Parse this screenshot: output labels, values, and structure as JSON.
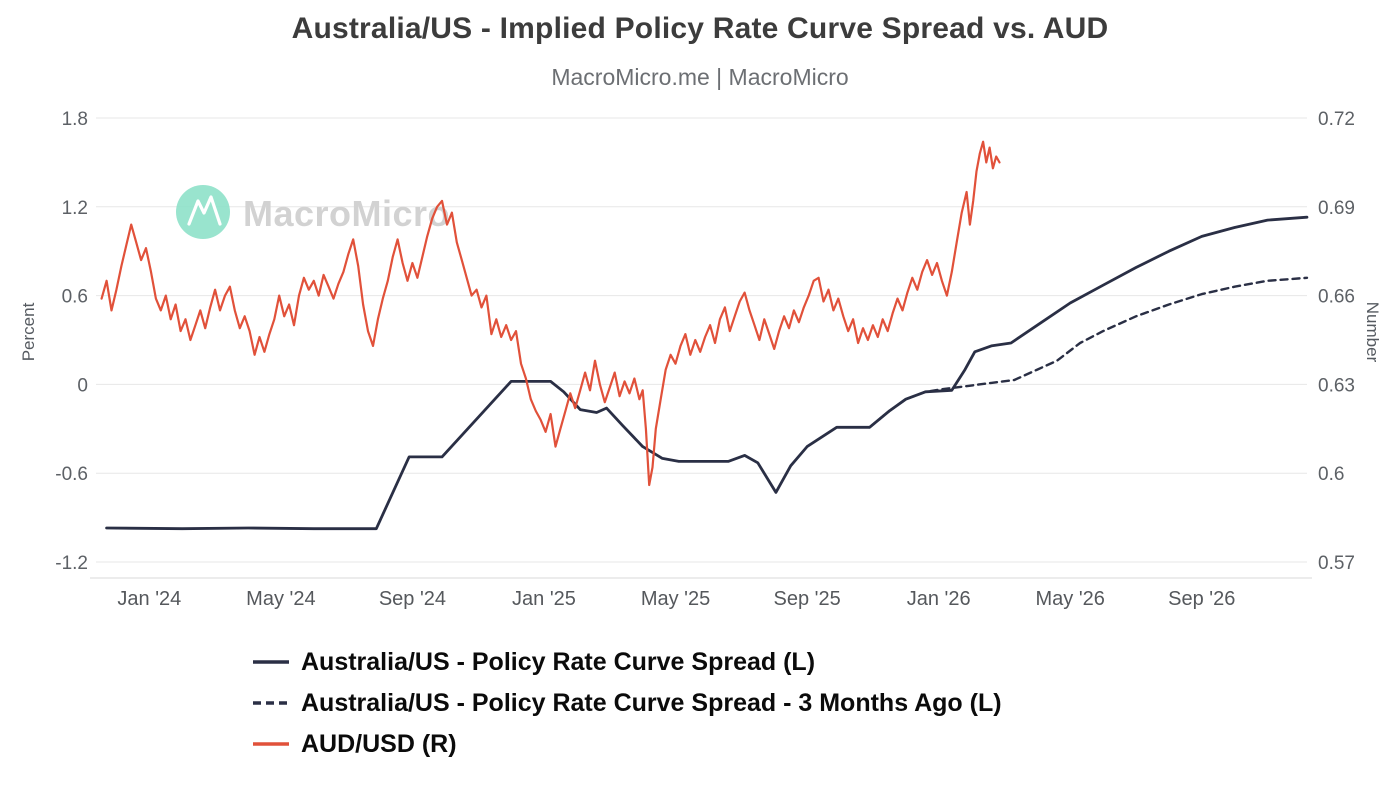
{
  "watermark": {
    "text": "MacroMicro",
    "logo_color": "#87dfc6",
    "text_color": "#d2d2d2"
  },
  "colors": {
    "grid": "#e7e7e7",
    "axis_line": "#d9d9d9",
    "tick_text": "#5d6166",
    "title": "#3c3c3c",
    "subtitle": "#6c6f73"
  },
  "chart_data": {
    "type": "line",
    "title": "Australia/US - Implied Policy Rate Curve Spread vs. AUD",
    "subtitle": "MacroMicro.me | MacroMicro",
    "grid": true,
    "legend_position": "bottom-left",
    "x_unit": "months since Jan 2024",
    "x_range": [
      -1.5,
      35.2
    ],
    "x_ticks": [
      {
        "m": 0,
        "label": "Jan '24"
      },
      {
        "m": 4,
        "label": "May '24"
      },
      {
        "m": 8,
        "label": "Sep '24"
      },
      {
        "m": 12,
        "label": "Jan '25"
      },
      {
        "m": 16,
        "label": "May '25"
      },
      {
        "m": 20,
        "label": "Sep '25"
      },
      {
        "m": 24,
        "label": "Jan '26"
      },
      {
        "m": 28,
        "label": "May '26"
      },
      {
        "m": 32,
        "label": "Sep '26"
      }
    ],
    "left_axis": {
      "title": "Percent",
      "range": [
        -1.2,
        1.8
      ],
      "ticks": [
        1.8,
        1.2,
        0.6,
        0,
        -0.6,
        -1.2
      ]
    },
    "right_axis": {
      "title": "Number",
      "range": [
        0.57,
        0.72
      ],
      "ticks": [
        0.72,
        0.69,
        0.66,
        0.63,
        0.6,
        0.57
      ]
    },
    "series": [
      {
        "name": "Australia/US - Policy Rate Curve Spread (L)",
        "axis": "left",
        "style": "solid",
        "color": "#2a2f45",
        "width": 2.8,
        "points": [
          [
            -1.3,
            -0.97
          ],
          [
            1,
            -0.975
          ],
          [
            3,
            -0.97
          ],
          [
            5,
            -0.975
          ],
          [
            6.9,
            -0.975
          ],
          [
            7.9,
            -0.49
          ],
          [
            8.9,
            -0.49
          ],
          [
            11.0,
            0.02
          ],
          [
            12.2,
            0.02
          ],
          [
            12.6,
            -0.05
          ],
          [
            13.1,
            -0.17
          ],
          [
            13.6,
            -0.19
          ],
          [
            13.9,
            -0.16
          ],
          [
            14.4,
            -0.28
          ],
          [
            15.0,
            -0.42
          ],
          [
            15.6,
            -0.5
          ],
          [
            16.1,
            -0.52
          ],
          [
            17.6,
            -0.52
          ],
          [
            18.1,
            -0.48
          ],
          [
            18.5,
            -0.53
          ],
          [
            19.05,
            -0.73
          ],
          [
            19.5,
            -0.55
          ],
          [
            20.0,
            -0.42
          ],
          [
            20.9,
            -0.29
          ],
          [
            21.9,
            -0.29
          ],
          [
            22.5,
            -0.18
          ],
          [
            23.0,
            -0.1
          ],
          [
            23.6,
            -0.05
          ],
          [
            24.4,
            -0.04
          ],
          [
            24.8,
            0.1
          ],
          [
            25.1,
            0.22
          ],
          [
            25.6,
            0.26
          ],
          [
            26.2,
            0.28
          ],
          [
            27,
            0.4
          ],
          [
            28,
            0.55
          ],
          [
            29,
            0.67
          ],
          [
            30,
            0.79
          ],
          [
            31,
            0.9
          ],
          [
            32,
            1.0
          ],
          [
            33,
            1.06
          ],
          [
            34,
            1.11
          ],
          [
            35.2,
            1.13
          ]
        ]
      },
      {
        "name": "Australia/US - Policy Rate Curve Spread - 3 Months Ago (L)",
        "axis": "left",
        "style": "dashed",
        "color": "#2a2f45",
        "width": 2.4,
        "points": [
          [
            21.9,
            -0.29
          ],
          [
            22.5,
            -0.18
          ],
          [
            23.0,
            -0.1
          ],
          [
            23.6,
            -0.05
          ],
          [
            24.2,
            -0.03
          ],
          [
            24.9,
            -0.01
          ],
          [
            25.6,
            0.01
          ],
          [
            26.3,
            0.03
          ],
          [
            27.0,
            0.1
          ],
          [
            27.6,
            0.16
          ],
          [
            28.3,
            0.28
          ],
          [
            29,
            0.36
          ],
          [
            30,
            0.46
          ],
          [
            31,
            0.54
          ],
          [
            32,
            0.61
          ],
          [
            33,
            0.66
          ],
          [
            34,
            0.7
          ],
          [
            35.2,
            0.72
          ]
        ]
      },
      {
        "name": "AUD/USD (R)",
        "axis": "right",
        "style": "solid",
        "color": "#e1513a",
        "width": 2.2,
        "points": [
          [
            -1.45,
            0.659
          ],
          [
            -1.3,
            0.665
          ],
          [
            -1.15,
            0.655
          ],
          [
            -1.0,
            0.662
          ],
          [
            -0.85,
            0.67
          ],
          [
            -0.7,
            0.677
          ],
          [
            -0.55,
            0.684
          ],
          [
            -0.4,
            0.678
          ],
          [
            -0.25,
            0.672
          ],
          [
            -0.1,
            0.676
          ],
          [
            0.05,
            0.668
          ],
          [
            0.2,
            0.659
          ],
          [
            0.35,
            0.655
          ],
          [
            0.5,
            0.66
          ],
          [
            0.65,
            0.652
          ],
          [
            0.8,
            0.657
          ],
          [
            0.95,
            0.648
          ],
          [
            1.1,
            0.652
          ],
          [
            1.25,
            0.645
          ],
          [
            1.4,
            0.65
          ],
          [
            1.55,
            0.655
          ],
          [
            1.7,
            0.649
          ],
          [
            1.85,
            0.656
          ],
          [
            2.0,
            0.662
          ],
          [
            2.15,
            0.655
          ],
          [
            2.3,
            0.66
          ],
          [
            2.45,
            0.663
          ],
          [
            2.6,
            0.655
          ],
          [
            2.75,
            0.649
          ],
          [
            2.9,
            0.653
          ],
          [
            3.05,
            0.648
          ],
          [
            3.2,
            0.64
          ],
          [
            3.35,
            0.646
          ],
          [
            3.5,
            0.641
          ],
          [
            3.65,
            0.647
          ],
          [
            3.8,
            0.652
          ],
          [
            3.95,
            0.66
          ],
          [
            4.1,
            0.653
          ],
          [
            4.25,
            0.657
          ],
          [
            4.4,
            0.65
          ],
          [
            4.55,
            0.66
          ],
          [
            4.7,
            0.666
          ],
          [
            4.85,
            0.662
          ],
          [
            5.0,
            0.665
          ],
          [
            5.15,
            0.66
          ],
          [
            5.3,
            0.667
          ],
          [
            5.45,
            0.663
          ],
          [
            5.6,
            0.659
          ],
          [
            5.75,
            0.664
          ],
          [
            5.9,
            0.668
          ],
          [
            6.05,
            0.674
          ],
          [
            6.2,
            0.679
          ],
          [
            6.35,
            0.67
          ],
          [
            6.5,
            0.657
          ],
          [
            6.65,
            0.648
          ],
          [
            6.8,
            0.643
          ],
          [
            6.95,
            0.652
          ],
          [
            7.1,
            0.659
          ],
          [
            7.25,
            0.665
          ],
          [
            7.4,
            0.673
          ],
          [
            7.55,
            0.679
          ],
          [
            7.7,
            0.671
          ],
          [
            7.85,
            0.665
          ],
          [
            8.0,
            0.671
          ],
          [
            8.15,
            0.666
          ],
          [
            8.3,
            0.673
          ],
          [
            8.45,
            0.68
          ],
          [
            8.6,
            0.686
          ],
          [
            8.75,
            0.69
          ],
          [
            8.9,
            0.692
          ],
          [
            9.05,
            0.684
          ],
          [
            9.2,
            0.688
          ],
          [
            9.35,
            0.678
          ],
          [
            9.5,
            0.672
          ],
          [
            9.65,
            0.666
          ],
          [
            9.8,
            0.66
          ],
          [
            9.95,
            0.662
          ],
          [
            10.1,
            0.656
          ],
          [
            10.25,
            0.66
          ],
          [
            10.4,
            0.647
          ],
          [
            10.55,
            0.652
          ],
          [
            10.7,
            0.646
          ],
          [
            10.85,
            0.65
          ],
          [
            11.0,
            0.645
          ],
          [
            11.15,
            0.648
          ],
          [
            11.3,
            0.637
          ],
          [
            11.45,
            0.632
          ],
          [
            11.6,
            0.625
          ],
          [
            11.75,
            0.621
          ],
          [
            11.9,
            0.618
          ],
          [
            12.05,
            0.614
          ],
          [
            12.2,
            0.62
          ],
          [
            12.35,
            0.609
          ],
          [
            12.5,
            0.615
          ],
          [
            12.65,
            0.621
          ],
          [
            12.8,
            0.627
          ],
          [
            12.95,
            0.622
          ],
          [
            13.1,
            0.628
          ],
          [
            13.25,
            0.634
          ],
          [
            13.4,
            0.628
          ],
          [
            13.55,
            0.638
          ],
          [
            13.7,
            0.63
          ],
          [
            13.85,
            0.624
          ],
          [
            14.0,
            0.629
          ],
          [
            14.15,
            0.634
          ],
          [
            14.3,
            0.626
          ],
          [
            14.45,
            0.631
          ],
          [
            14.6,
            0.627
          ],
          [
            14.75,
            0.632
          ],
          [
            14.9,
            0.625
          ],
          [
            15.0,
            0.628
          ],
          [
            15.1,
            0.615
          ],
          [
            15.2,
            0.596
          ],
          [
            15.3,
            0.602
          ],
          [
            15.4,
            0.615
          ],
          [
            15.55,
            0.625
          ],
          [
            15.7,
            0.635
          ],
          [
            15.85,
            0.64
          ],
          [
            16.0,
            0.637
          ],
          [
            16.15,
            0.643
          ],
          [
            16.3,
            0.647
          ],
          [
            16.45,
            0.64
          ],
          [
            16.6,
            0.645
          ],
          [
            16.75,
            0.641
          ],
          [
            16.9,
            0.646
          ],
          [
            17.05,
            0.65
          ],
          [
            17.2,
            0.644
          ],
          [
            17.35,
            0.652
          ],
          [
            17.5,
            0.656
          ],
          [
            17.65,
            0.648
          ],
          [
            17.8,
            0.653
          ],
          [
            17.95,
            0.658
          ],
          [
            18.1,
            0.661
          ],
          [
            18.25,
            0.655
          ],
          [
            18.4,
            0.65
          ],
          [
            18.55,
            0.645
          ],
          [
            18.7,
            0.652
          ],
          [
            18.85,
            0.647
          ],
          [
            19.0,
            0.642
          ],
          [
            19.15,
            0.648
          ],
          [
            19.3,
            0.653
          ],
          [
            19.45,
            0.649
          ],
          [
            19.6,
            0.655
          ],
          [
            19.75,
            0.651
          ],
          [
            19.9,
            0.656
          ],
          [
            20.05,
            0.66
          ],
          [
            20.2,
            0.665
          ],
          [
            20.35,
            0.666
          ],
          [
            20.5,
            0.658
          ],
          [
            20.65,
            0.662
          ],
          [
            20.8,
            0.655
          ],
          [
            20.95,
            0.659
          ],
          [
            21.1,
            0.653
          ],
          [
            21.25,
            0.648
          ],
          [
            21.4,
            0.652
          ],
          [
            21.55,
            0.644
          ],
          [
            21.7,
            0.649
          ],
          [
            21.85,
            0.645
          ],
          [
            22.0,
            0.65
          ],
          [
            22.15,
            0.646
          ],
          [
            22.3,
            0.652
          ],
          [
            22.45,
            0.648
          ],
          [
            22.6,
            0.654
          ],
          [
            22.75,
            0.659
          ],
          [
            22.9,
            0.655
          ],
          [
            23.05,
            0.661
          ],
          [
            23.2,
            0.666
          ],
          [
            23.35,
            0.662
          ],
          [
            23.5,
            0.668
          ],
          [
            23.65,
            0.672
          ],
          [
            23.8,
            0.667
          ],
          [
            23.95,
            0.671
          ],
          [
            24.1,
            0.665
          ],
          [
            24.25,
            0.66
          ],
          [
            24.4,
            0.668
          ],
          [
            24.55,
            0.678
          ],
          [
            24.7,
            0.688
          ],
          [
            24.85,
            0.695
          ],
          [
            24.95,
            0.684
          ],
          [
            25.05,
            0.692
          ],
          [
            25.15,
            0.702
          ],
          [
            25.25,
            0.708
          ],
          [
            25.35,
            0.712
          ],
          [
            25.45,
            0.705
          ],
          [
            25.55,
            0.71
          ],
          [
            25.65,
            0.703
          ],
          [
            25.75,
            0.707
          ],
          [
            25.85,
            0.705
          ]
        ]
      }
    ]
  }
}
